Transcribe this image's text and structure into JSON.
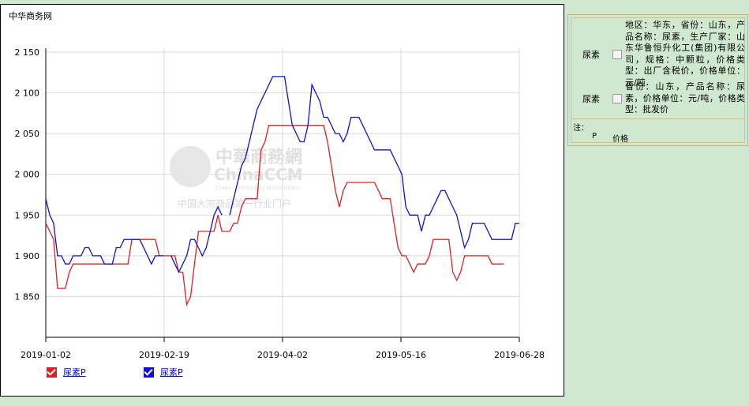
{
  "brand": "中华商务网",
  "colors": {
    "red": "#e02020",
    "blue": "#1010d0"
  },
  "watermark": {
    "name_cn": "中華商務網",
    "name_en": "ChinaCCM",
    "domain": ".com",
    "tagline_en": "China Commodity Marketplace",
    "tagline_cn": "中国大宗商品第一行业门户"
  },
  "legend": [
    {
      "label": "尿素P",
      "color": "red"
    },
    {
      "label": "尿素P",
      "color": "blue"
    }
  ],
  "side_panel": {
    "rows": [
      {
        "name": "尿素",
        "desc": "地区：华东，省份：山东，产品名称：尿素，生产厂家：山东华鲁恒升化工(集团)有限公司，规格：中颗粒，价格类型：出厂含税价，价格单位：元/吨"
      },
      {
        "name": "尿素",
        "desc": "省份：山东，产品名称：尿素，价格单位：元/吨，价格类型：批发价"
      }
    ],
    "note_title": "注：",
    "note_key": "P",
    "note_value": "价格"
  },
  "chart_data": {
    "type": "line",
    "x_ticks": [
      "2019-01-02",
      "2019-02-19",
      "2019-04-02",
      "2019-05-16",
      "2019-06-28"
    ],
    "ylim": [
      1800,
      2150
    ],
    "y_ticks": [
      1850,
      1900,
      1950,
      2000,
      2050,
      2100,
      2150
    ],
    "grid": true,
    "series": [
      {
        "name": "尿素P",
        "color": "red",
        "points": [
          [
            0,
            1940
          ],
          [
            1,
            1930
          ],
          [
            2,
            1920
          ],
          [
            3,
            1860
          ],
          [
            4,
            1860
          ],
          [
            5,
            1860
          ],
          [
            6,
            1880
          ],
          [
            7,
            1890
          ],
          [
            8,
            1890
          ],
          [
            9,
            1890
          ],
          [
            10,
            1890
          ],
          [
            11,
            1890
          ],
          [
            12,
            1890
          ],
          [
            13,
            1890
          ],
          [
            14,
            1890
          ],
          [
            15,
            1890
          ],
          [
            16,
            1890
          ],
          [
            17,
            1890
          ],
          [
            18,
            1890
          ],
          [
            19,
            1890
          ],
          [
            20,
            1890
          ],
          [
            21,
            1890
          ],
          [
            22,
            1920
          ],
          [
            23,
            1920
          ],
          [
            24,
            1920
          ],
          [
            25,
            1920
          ],
          [
            26,
            1920
          ],
          [
            27,
            1920
          ],
          [
            28,
            1920
          ],
          [
            29,
            1900
          ],
          [
            30,
            1900
          ],
          [
            31,
            1900
          ],
          [
            32,
            1900
          ],
          [
            33,
            1900
          ],
          [
            34,
            1880
          ],
          [
            35,
            1880
          ],
          [
            36,
            1840
          ],
          [
            37,
            1850
          ],
          [
            38,
            1890
          ],
          [
            39,
            1930
          ],
          [
            40,
            1930
          ],
          [
            41,
            1930
          ],
          [
            42,
            1930
          ],
          [
            43,
            1930
          ],
          [
            44,
            1950
          ],
          [
            45,
            1930
          ],
          [
            46,
            1930
          ],
          [
            47,
            1930
          ],
          [
            48,
            1940
          ],
          [
            49,
            1940
          ],
          [
            50,
            1960
          ],
          [
            51,
            1970
          ],
          [
            52,
            1970
          ],
          [
            53,
            1970
          ],
          [
            54,
            1970
          ],
          [
            55,
            2030
          ],
          [
            56,
            2040
          ],
          [
            57,
            2060
          ],
          [
            58,
            2060
          ],
          [
            59,
            2060
          ],
          [
            60,
            2060
          ],
          [
            61,
            2060
          ],
          [
            62,
            2060
          ],
          [
            63,
            2060
          ],
          [
            64,
            2060
          ],
          [
            65,
            2060
          ],
          [
            66,
            2060
          ],
          [
            67,
            2060
          ],
          [
            68,
            2060
          ],
          [
            69,
            2060
          ],
          [
            70,
            2060
          ],
          [
            71,
            2060
          ],
          [
            72,
            2040
          ],
          [
            73,
            2010
          ],
          [
            74,
            1980
          ],
          [
            75,
            1960
          ],
          [
            76,
            1980
          ],
          [
            77,
            1990
          ],
          [
            78,
            1990
          ],
          [
            79,
            1990
          ],
          [
            80,
            1990
          ],
          [
            81,
            1990
          ],
          [
            82,
            1990
          ],
          [
            83,
            1990
          ],
          [
            84,
            1990
          ],
          [
            85,
            1980
          ],
          [
            86,
            1970
          ],
          [
            87,
            1970
          ],
          [
            88,
            1970
          ],
          [
            89,
            1940
          ],
          [
            90,
            1910
          ],
          [
            91,
            1900
          ],
          [
            92,
            1900
          ],
          [
            93,
            1890
          ],
          [
            94,
            1880
          ],
          [
            95,
            1890
          ],
          [
            96,
            1890
          ],
          [
            97,
            1890
          ],
          [
            98,
            1900
          ],
          [
            99,
            1920
          ],
          [
            100,
            1920
          ],
          [
            101,
            1920
          ],
          [
            102,
            1920
          ],
          [
            103,
            1920
          ],
          [
            104,
            1880
          ],
          [
            105,
            1870
          ],
          [
            106,
            1880
          ],
          [
            107,
            1900
          ],
          [
            108,
            1900
          ],
          [
            109,
            1900
          ],
          [
            110,
            1900
          ],
          [
            111,
            1900
          ],
          [
            112,
            1900
          ],
          [
            113,
            1900
          ],
          [
            114,
            1890
          ],
          [
            115,
            1890
          ],
          [
            116,
            1890
          ],
          [
            117,
            1890
          ]
        ]
      },
      {
        "name": "尿素P",
        "color": "blue",
        "points": [
          [
            0,
            1970
          ],
          [
            1,
            1950
          ],
          [
            2,
            1940
          ],
          [
            3,
            1900
          ],
          [
            4,
            1900
          ],
          [
            5,
            1890
          ],
          [
            6,
            1890
          ],
          [
            7,
            1900
          ],
          [
            8,
            1900
          ],
          [
            9,
            1900
          ],
          [
            10,
            1910
          ],
          [
            11,
            1910
          ],
          [
            12,
            1900
          ],
          [
            13,
            1900
          ],
          [
            14,
            1900
          ],
          [
            15,
            1890
          ],
          [
            16,
            1890
          ],
          [
            17,
            1890
          ],
          [
            18,
            1910
          ],
          [
            19,
            1910
          ],
          [
            20,
            1920
          ],
          [
            21,
            1920
          ],
          [
            22,
            1920
          ],
          [
            23,
            1920
          ],
          [
            24,
            1920
          ],
          [
            25,
            1910
          ],
          [
            26,
            1900
          ],
          [
            27,
            1890
          ],
          [
            28,
            1900
          ],
          [
            29,
            1900
          ],
          [
            30,
            1900
          ],
          [
            31,
            null
          ],
          [
            32,
            1900
          ],
          [
            33,
            1890
          ],
          [
            34,
            1880
          ],
          [
            35,
            1890
          ],
          [
            36,
            1900
          ],
          [
            37,
            1920
          ],
          [
            38,
            1920
          ],
          [
            39,
            1910
          ],
          [
            40,
            1900
          ],
          [
            41,
            1910
          ],
          [
            42,
            1930
          ],
          [
            43,
            1950
          ],
          [
            44,
            1960
          ],
          [
            45,
            1950
          ],
          [
            46,
            null
          ],
          [
            47,
            1950
          ],
          [
            48,
            1970
          ],
          [
            49,
            1990
          ],
          [
            50,
            2010
          ],
          [
            51,
            2020
          ],
          [
            52,
            2040
          ],
          [
            53,
            2060
          ],
          [
            54,
            2080
          ],
          [
            55,
            2090
          ],
          [
            56,
            2100
          ],
          [
            57,
            2110
          ],
          [
            58,
            2120
          ],
          [
            59,
            2120
          ],
          [
            60,
            2120
          ],
          [
            61,
            2120
          ],
          [
            62,
            2090
          ],
          [
            63,
            2060
          ],
          [
            64,
            2050
          ],
          [
            65,
            2040
          ],
          [
            66,
            2040
          ],
          [
            67,
            2060
          ],
          [
            68,
            2110
          ],
          [
            69,
            2100
          ],
          [
            70,
            2090
          ],
          [
            71,
            2070
          ],
          [
            72,
            2070
          ],
          [
            73,
            2060
          ],
          [
            74,
            2050
          ],
          [
            75,
            2050
          ],
          [
            76,
            2040
          ],
          [
            77,
            2050
          ],
          [
            78,
            2070
          ],
          [
            79,
            2070
          ],
          [
            80,
            2070
          ],
          [
            81,
            2060
          ],
          [
            82,
            2050
          ],
          [
            83,
            2040
          ],
          [
            84,
            2030
          ],
          [
            85,
            2030
          ],
          [
            86,
            2030
          ],
          [
            87,
            2030
          ],
          [
            88,
            2030
          ],
          [
            89,
            2020
          ],
          [
            90,
            2010
          ],
          [
            91,
            2000
          ],
          [
            92,
            1960
          ],
          [
            93,
            1950
          ],
          [
            94,
            1950
          ],
          [
            95,
            1950
          ],
          [
            96,
            1930
          ],
          [
            97,
            1950
          ],
          [
            98,
            1950
          ],
          [
            99,
            1960
          ],
          [
            100,
            1970
          ],
          [
            101,
            1980
          ],
          [
            102,
            1980
          ],
          [
            103,
            1970
          ],
          [
            104,
            1960
          ],
          [
            105,
            1950
          ],
          [
            106,
            1930
          ],
          [
            107,
            1910
          ],
          [
            108,
            1920
          ],
          [
            109,
            1940
          ],
          [
            110,
            1940
          ],
          [
            111,
            1940
          ],
          [
            112,
            1940
          ],
          [
            113,
            1930
          ],
          [
            114,
            1920
          ],
          [
            115,
            1920
          ],
          [
            116,
            1920
          ],
          [
            117,
            1920
          ],
          [
            118,
            1920
          ],
          [
            119,
            1920
          ],
          [
            120,
            1940
          ],
          [
            121,
            1940
          ]
        ]
      }
    ],
    "x_max_index": 121
  }
}
